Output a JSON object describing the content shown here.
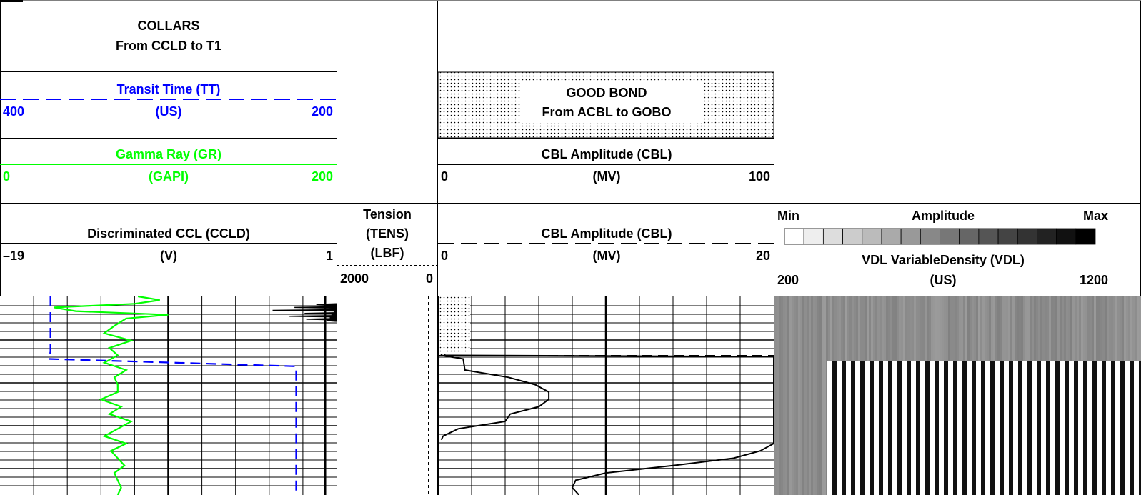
{
  "tracks": {
    "depth_track": {
      "collars": {
        "title": "COLLARS",
        "subtitle": "From CCLD to T1"
      },
      "tt": {
        "name": "Transit Time (TT)",
        "unit": "(US)",
        "left": "400",
        "right": "200",
        "color": "#0000ff"
      },
      "gr": {
        "name": "Gamma Ray (GR)",
        "unit": "(GAPI)",
        "left": "0",
        "right": "200",
        "color": "#00ff00"
      },
      "ccld": {
        "name": "Discriminated CCL (CCLD)",
        "unit": "(V)",
        "left": "–19",
        "right": "1",
        "color": "#000000"
      }
    },
    "tension": {
      "line1": "Tension",
      "line2": "(TENS)",
      "unit": "(LBF)",
      "left": "2000",
      "right": "0"
    },
    "cbl": {
      "good_bond": {
        "title": "GOOD BOND",
        "subtitle": "From ACBL to GOBO"
      },
      "cbl100": {
        "name": "CBL Amplitude (CBL)",
        "unit": "(MV)",
        "left": "0",
        "right": "100"
      },
      "cbl20": {
        "name": "CBL Amplitude (CBL)",
        "unit": "(MV)",
        "left": "0",
        "right": "20"
      }
    },
    "vdl": {
      "amp_min": "Min",
      "amp_label": "Amplitude",
      "amp_max": "Max",
      "name": "VDL VariableDensity (VDL)",
      "unit": "(US)",
      "left": "200",
      "right": "1200"
    }
  },
  "chart_data": {
    "type": "line",
    "depth_axis": "relative sample index (depth labels not visible)",
    "series": [
      {
        "name": "Gamma Ray (GR)",
        "unit": "GAPI",
        "range": [
          0,
          200
        ],
        "color": "#00ff00",
        "depth": [
          0,
          5,
          10,
          15,
          20,
          25,
          30,
          40,
          50,
          60,
          70,
          80,
          90,
          100,
          110,
          120,
          130,
          140,
          150,
          160,
          170,
          180,
          190,
          200,
          210,
          220,
          230,
          240,
          250,
          260,
          270
        ],
        "values": [
          82,
          95,
          80,
          32,
          45,
          100,
          75,
          68,
          62,
          78,
          65,
          70,
          62,
          75,
          68,
          70,
          70,
          60,
          72,
          65,
          78,
          70,
          62,
          75,
          66,
          70,
          74,
          68,
          70,
          72,
          70
        ]
      },
      {
        "name": "Transit Time (TT)",
        "unit": "US",
        "range": [
          400,
          200
        ],
        "color": "#0000ff",
        "depth": [
          0,
          70,
          75,
          85,
          95,
          270
        ],
        "values": [
          370,
          370,
          370,
          371,
          224,
          224
        ]
      },
      {
        "name": "CBL Amplitude (CBL) 0-100",
        "unit": "MV",
        "range": [
          0,
          100
        ],
        "color": "#000000",
        "depth": [
          0,
          80,
          82,
          90,
          100,
          110,
          120,
          130,
          140,
          150,
          160,
          170,
          180,
          190,
          200,
          210,
          220,
          230,
          240,
          250,
          260,
          270
        ],
        "values": [
          2,
          2,
          100,
          100,
          100,
          100,
          100,
          100,
          100,
          100,
          100,
          100,
          100,
          100,
          100,
          96,
          88,
          70,
          50,
          41,
          40,
          42
        ]
      },
      {
        "name": "CBL Amplitude (CBL) 0-20",
        "unit": "MV",
        "range": [
          0,
          20
        ],
        "color": "#000000",
        "depth": [
          0,
          80,
          85,
          100,
          110,
          120,
          130,
          140,
          150,
          160,
          170,
          180,
          190,
          195
        ],
        "values": [
          0.2,
          0.2,
          1.5,
          1.6,
          4.2,
          5.8,
          6.6,
          6.6,
          6.0,
          4.3,
          4.0,
          1.2,
          0.3,
          0.2
        ]
      },
      {
        "name": "Discriminated CCL (CCLD)",
        "unit": "V",
        "range": [
          -19,
          1
        ],
        "color": "#000000",
        "spikes_at_depth": [
          10,
          12,
          14,
          16,
          18,
          20,
          22,
          24,
          26,
          28,
          30,
          32
        ],
        "values": [
          -0.2,
          0.8,
          -1.5,
          0.9,
          -2.8,
          0.9,
          -0.9,
          0.7,
          -1.8,
          0.6,
          -0.8,
          0.4
        ]
      }
    ]
  }
}
